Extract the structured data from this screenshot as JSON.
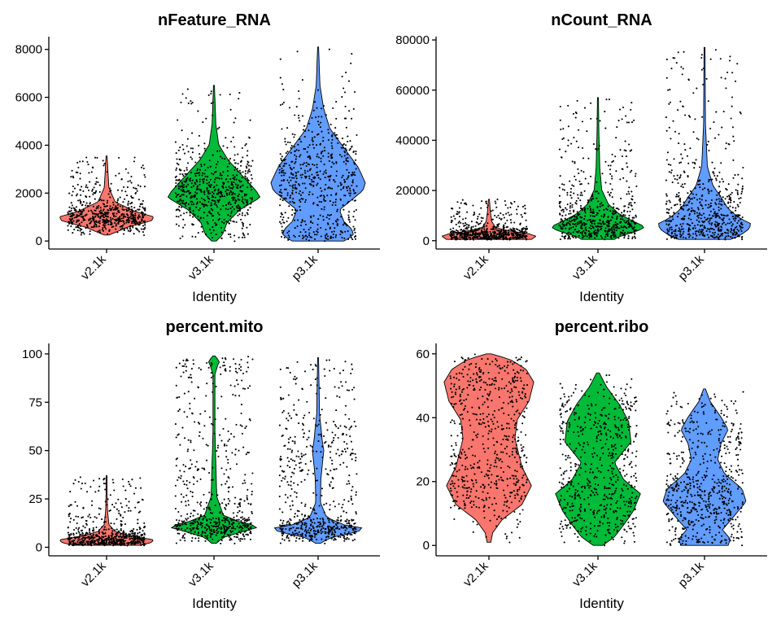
{
  "chart_data": [
    {
      "type": "violin",
      "title": "nFeature_RNA",
      "xlabel": "Identity",
      "ylabel": "",
      "categories": [
        "v2.1k",
        "v3.1k",
        "p3.1k"
      ],
      "ylim": [
        -300,
        8500
      ],
      "yticks": [
        0,
        2000,
        4000,
        6000,
        8000
      ],
      "yticklabels": [
        "0",
        "2000",
        "4000",
        "6000",
        "8000"
      ],
      "series": [
        {
          "category": "v2.1k",
          "min": 250,
          "mode": 1100,
          "max": 3550
        },
        {
          "category": "v3.1k",
          "min": 0,
          "mode": 1900,
          "max": 6500
        },
        {
          "category": "p3.1k",
          "min": 0,
          "mode": 2000,
          "max": 8100
        }
      ]
    },
    {
      "type": "violin",
      "title": "nCount_RNA",
      "xlabel": "Identity",
      "ylabel": "",
      "categories": [
        "v2.1k",
        "v3.1k",
        "p3.1k"
      ],
      "ylim": [
        -3000,
        81000
      ],
      "yticks": [
        0,
        20000,
        40000,
        60000,
        80000
      ],
      "yticklabels": [
        "0",
        "20000",
        "40000",
        "60000",
        "80000"
      ],
      "series": [
        {
          "category": "v2.1k",
          "min": 500,
          "mode": 3000,
          "max": 16500
        },
        {
          "category": "v3.1k",
          "min": 500,
          "mode": 6000,
          "max": 57000
        },
        {
          "category": "p3.1k",
          "min": 500,
          "mode": 6000,
          "max": 77000
        }
      ]
    },
    {
      "type": "violin",
      "title": "percent.mito",
      "xlabel": "Identity",
      "ylabel": "",
      "categories": [
        "v2.1k",
        "v3.1k",
        "p3.1k"
      ],
      "ylim": [
        -4,
        105
      ],
      "yticks": [
        0,
        25,
        50,
        75,
        100
      ],
      "yticklabels": [
        "0",
        "25",
        "50",
        "75",
        "100"
      ],
      "series": [
        {
          "category": "v2.1k",
          "min": 1,
          "mode": 4,
          "max": 37
        },
        {
          "category": "v3.1k",
          "min": 2,
          "mode": 10,
          "max": 99
        },
        {
          "category": "p3.1k",
          "min": 2,
          "mode": 9,
          "max": 98
        }
      ]
    },
    {
      "type": "violin",
      "title": "percent.ribo",
      "xlabel": "Identity",
      "ylabel": "",
      "categories": [
        "v2.1k",
        "v3.1k",
        "p3.1k"
      ],
      "ylim": [
        -3,
        63
      ],
      "yticks": [
        0,
        20,
        40,
        60
      ],
      "yticklabels": [
        "0",
        "20",
        "40",
        "60"
      ],
      "series": [
        {
          "category": "v2.1k",
          "min": 1,
          "mode": 27,
          "max": 60
        },
        {
          "category": "v3.1k",
          "min": 0,
          "mode": 17,
          "max": 54
        },
        {
          "category": "p3.1k",
          "min": 0,
          "mode": 16,
          "max": 49
        }
      ]
    }
  ],
  "colors": {
    "v2.1k": "#f8766d",
    "v3.1k": "#00ba38",
    "p3.1k": "#619cff",
    "points": "#000000"
  },
  "legend": "none",
  "grid": false
}
